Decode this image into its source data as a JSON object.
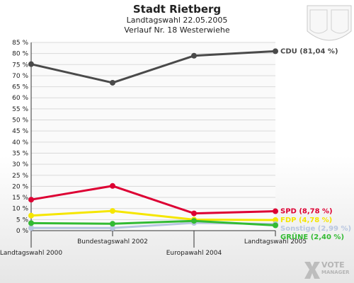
{
  "header": {
    "title": "Stadt Rietberg",
    "subtitle": "Landtagswahl 22.05.2005",
    "subtitle2": "Verlauf Nr. 18 Westerwiehe"
  },
  "brand": {
    "line1": "VOTE",
    "line2": "MANAGER"
  },
  "chart_data": {
    "type": "line",
    "categories": [
      "Landtagswahl 2000",
      "Bundestagswahl 2002",
      "Europawahl 2004",
      "Landtagswahl 2005"
    ],
    "ylim": [
      0,
      85
    ],
    "yticks": [
      0,
      5,
      10,
      15,
      20,
      25,
      30,
      35,
      40,
      45,
      50,
      55,
      60,
      65,
      70,
      75,
      80,
      85
    ],
    "ytick_suffix": " %",
    "grid": "horizontal",
    "legend_position": "right, at line ends",
    "series": [
      {
        "name": "CDU",
        "values": [
          75.2,
          66.8,
          79.0,
          81.04
        ],
        "color": "#4a4a4a",
        "end_label": "CDU (81,04 %)"
      },
      {
        "name": "SPD",
        "values": [
          14.0,
          20.2,
          7.8,
          8.78
        ],
        "color": "#dd0033",
        "end_label": "SPD (8,78 %)"
      },
      {
        "name": "FDP",
        "values": [
          6.8,
          8.9,
          5.0,
          4.78
        ],
        "color": "#f5e600",
        "end_label": "FDP (4,78 %)"
      },
      {
        "name": "Sonstige",
        "values": [
          1.2,
          1.2,
          3.5,
          2.99
        ],
        "color": "#b8c6e0",
        "end_label": "Sonstige (2,99 %)"
      },
      {
        "name": "GRÜNE",
        "values": [
          3.4,
          3.1,
          4.4,
          2.4
        ],
        "color": "#33bb33",
        "end_label": "GRÜNE (2,40 %)"
      }
    ]
  }
}
